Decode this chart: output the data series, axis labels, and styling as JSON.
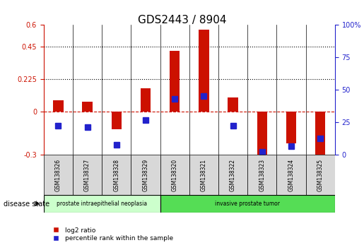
{
  "title": "GDS2443 / 8904",
  "samples": [
    "GSM138326",
    "GSM138327",
    "GSM138328",
    "GSM138329",
    "GSM138320",
    "GSM138321",
    "GSM138322",
    "GSM138323",
    "GSM138324",
    "GSM138325"
  ],
  "log2_ratio": [
    0.08,
    0.07,
    -0.12,
    0.16,
    0.42,
    0.57,
    0.1,
    -0.32,
    -0.22,
    -0.3
  ],
  "percentile_rank": [
    0.225,
    0.215,
    0.08,
    0.27,
    0.43,
    0.455,
    0.225,
    0.022,
    0.07,
    0.13
  ],
  "ylim_left": [
    -0.3,
    0.6
  ],
  "ylim_right": [
    0,
    100
  ],
  "yticks_left": [
    -0.3,
    0.0,
    0.225,
    0.45,
    0.6
  ],
  "ytick_labels_left": [
    "-0.3",
    "0",
    "0.225",
    "0.45",
    "0.6"
  ],
  "yticks_right": [
    0,
    25,
    50,
    75,
    100
  ],
  "ytick_labels_right": [
    "0",
    "25",
    "50",
    "75",
    "100%"
  ],
  "hline_values": [
    0.225,
    0.45
  ],
  "red_bar_color": "#cc1100",
  "blue_marker_color": "#2222cc",
  "dashed_line_color": "#cc1100",
  "group1_label": "prostate intraepithelial neoplasia",
  "group2_label": "invasive prostate tumor",
  "group1_color": "#ccffcc",
  "group2_color": "#55dd55",
  "group1_indices": [
    0,
    1,
    2,
    3
  ],
  "group2_indices": [
    4,
    5,
    6,
    7,
    8,
    9
  ],
  "disease_state_label": "disease state",
  "legend_red_label": "log2 ratio",
  "legend_blue_label": "percentile rank within the sample",
  "bar_width": 0.35,
  "marker_size": 6
}
